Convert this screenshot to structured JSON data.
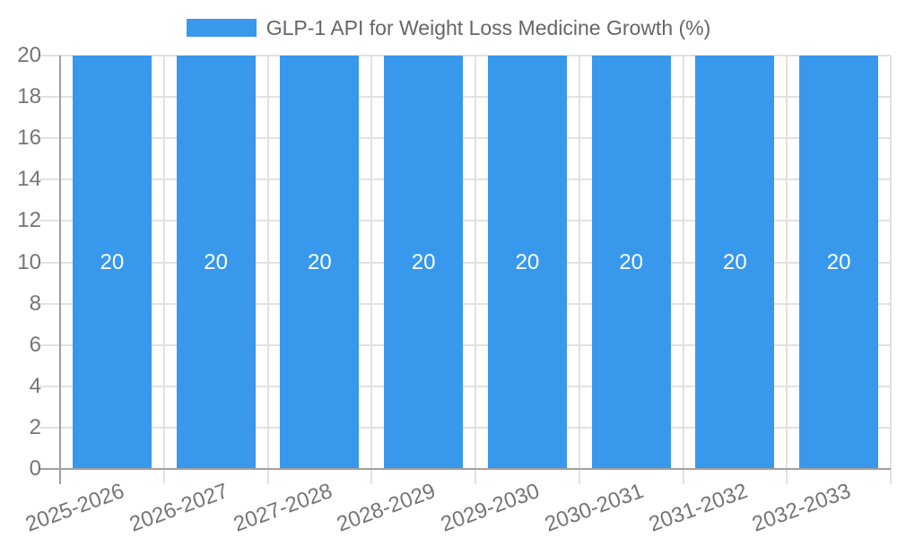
{
  "legend": {
    "label": "GLP-1 API for Weight Loss Medicine Growth (%)"
  },
  "chart_data": {
    "type": "bar",
    "title": "GLP-1 API for Weight Loss Medicine Growth (%)",
    "categories": [
      "2025-2026",
      "2026-2027",
      "2027-2028",
      "2028-2029",
      "2029-2030",
      "2030-2031",
      "2031-2032",
      "2032-2033"
    ],
    "values": [
      20,
      20,
      20,
      20,
      20,
      20,
      20,
      20
    ],
    "bar_labels": [
      "20",
      "20",
      "20",
      "20",
      "20",
      "20",
      "20",
      "20"
    ],
    "xlabel": "",
    "ylabel": "",
    "ylim": [
      0,
      20
    ],
    "ytick_step": 2,
    "ytick_labels": [
      "0",
      "2",
      "4",
      "6",
      "8",
      "10",
      "12",
      "14",
      "16",
      "18",
      "20"
    ],
    "grid": true,
    "legend_position": "top-center",
    "x_label_rotation_deg": -20,
    "colors": {
      "bar": "#3898EC",
      "grid": "#E2E2E2",
      "axis": "#A0A0A0",
      "tick_text": "#757575",
      "legend_text": "#666666",
      "bar_label_text": "#FFFFFF",
      "background": "#FFFFFF"
    }
  }
}
